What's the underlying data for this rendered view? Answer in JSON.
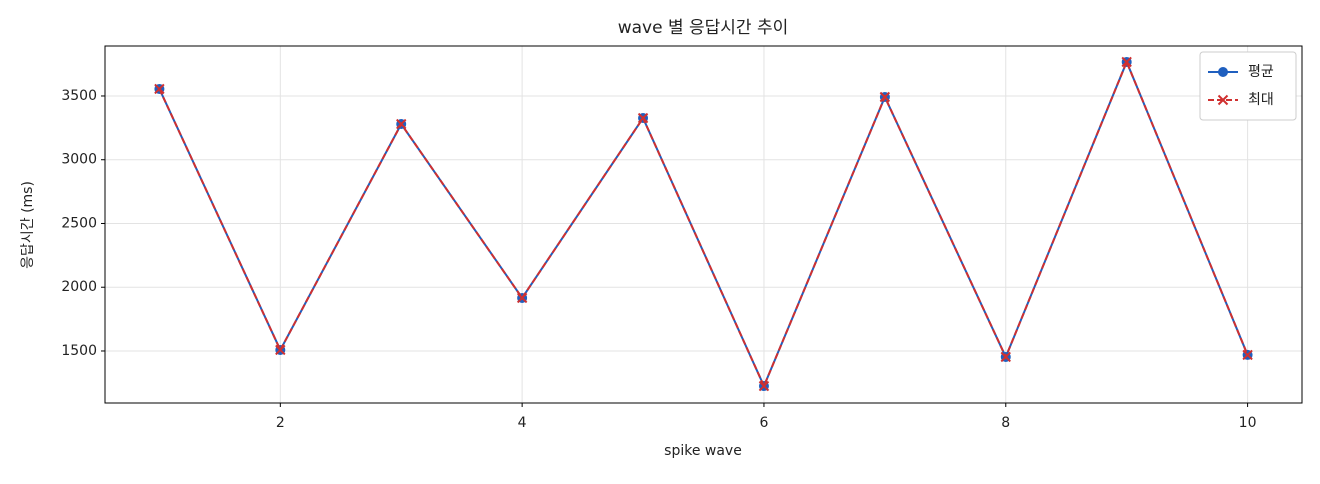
{
  "chart_data": {
    "type": "line",
    "title": "wave 별 응답시간 추이",
    "x_label": "spike wave",
    "y_label": "응답시간 (ms)",
    "x": [
      1,
      2,
      3,
      4,
      5,
      6,
      7,
      8,
      9,
      10
    ],
    "series": [
      {
        "name": "평균",
        "color": "#1f5fbf",
        "marker": "o",
        "linestyle": "solid",
        "values": [
          3555,
          1508,
          3280,
          1916,
          3327,
          1225,
          3492,
          1453,
          3767,
          1469
        ]
      },
      {
        "name": "최대",
        "color": "#d03030",
        "marker": "x",
        "linestyle": "dashed",
        "values": [
          3555,
          1508,
          3280,
          1916,
          3327,
          1225,
          3492,
          1453,
          3767,
          1469
        ]
      }
    ],
    "xlim": [
      0.55,
      10.45
    ],
    "ylim": [
      1092,
      3892
    ],
    "xticks": [
      2,
      4,
      6,
      8,
      10
    ],
    "yticks": [
      1500,
      2000,
      2500,
      3000,
      3500
    ],
    "grid": true,
    "legend": "upper right"
  }
}
